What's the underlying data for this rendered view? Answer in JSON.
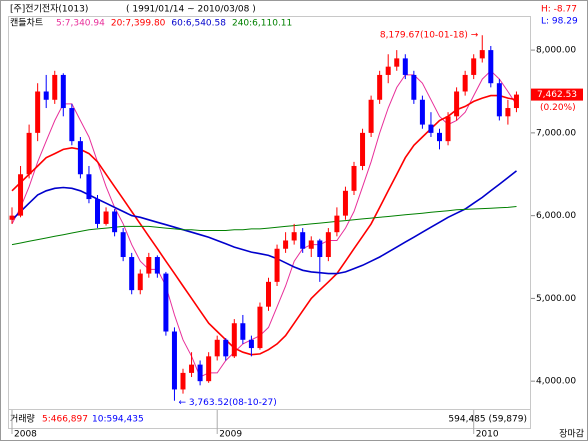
{
  "header": {
    "title": "[주]전기전자(1013)",
    "period": "( 1991/01/14 ~ 2010/03/08 )",
    "high": "H: -8.77",
    "low": "L: 98.29"
  },
  "chart_data": {
    "type": "candlestick",
    "label": "캔들차트",
    "up_color": "#ff0000",
    "down_color": "#0000ff",
    "candles": [
      [
        5950,
        6100,
        5900,
        6000
      ],
      [
        6000,
        6600,
        5980,
        6500
      ],
      [
        6500,
        7100,
        6450,
        7000
      ],
      [
        7000,
        7600,
        6900,
        7500
      ],
      [
        7500,
        7700,
        7300,
        7400
      ],
      [
        7400,
        7750,
        7350,
        7700
      ],
      [
        7700,
        7720,
        7200,
        7300
      ],
      [
        7300,
        7350,
        6850,
        6900
      ],
      [
        6900,
        6950,
        6450,
        6500
      ],
      [
        6500,
        6600,
        6150,
        6200
      ],
      [
        6200,
        6250,
        5850,
        5900
      ],
      [
        5900,
        6100,
        5880,
        6050
      ],
      [
        6050,
        6080,
        5750,
        5800
      ],
      [
        5800,
        5850,
        5450,
        5500
      ],
      [
        5500,
        5550,
        5050,
        5100
      ],
      [
        5100,
        5350,
        5050,
        5300
      ],
      [
        5300,
        5550,
        5250,
        5500
      ],
      [
        5500,
        5520,
        5250,
        5300
      ],
      [
        5300,
        5320,
        4550,
        4600
      ],
      [
        4600,
        4650,
        3763.52,
        3900
      ],
      [
        3900,
        4150,
        3850,
        4100
      ],
      [
        4100,
        4350,
        4050,
        4200
      ],
      [
        4200,
        4250,
        3950,
        4000
      ],
      [
        4000,
        4350,
        3980,
        4300
      ],
      [
        4300,
        4550,
        4250,
        4500
      ],
      [
        4500,
        4520,
        4250,
        4300
      ],
      [
        4300,
        4750,
        4280,
        4700
      ],
      [
        4700,
        4800,
        4450,
        4500
      ],
      [
        4500,
        4550,
        4300,
        4400
      ],
      [
        4400,
        4950,
        4380,
        4900
      ],
      [
        4900,
        5250,
        4850,
        5200
      ],
      [
        5200,
        5650,
        5150,
        5600
      ],
      [
        5600,
        5800,
        5550,
        5700
      ],
      [
        5700,
        5900,
        5650,
        5800
      ],
      [
        5800,
        5850,
        5550,
        5600
      ],
      [
        5600,
        5750,
        5500,
        5700
      ],
      [
        5700,
        5720,
        5200,
        5500
      ],
      [
        5500,
        5850,
        5450,
        5800
      ],
      [
        5800,
        6100,
        5750,
        6000
      ],
      [
        6000,
        6350,
        5950,
        6300
      ],
      [
        6300,
        6650,
        6250,
        6600
      ],
      [
        6600,
        7050,
        6550,
        7000
      ],
      [
        7000,
        7450,
        6950,
        7400
      ],
      [
        7400,
        7750,
        7350,
        7700
      ],
      [
        7700,
        7950,
        7600,
        7800
      ],
      [
        7800,
        8000,
        7750,
        7900
      ],
      [
        7900,
        7950,
        7650,
        7700
      ],
      [
        7700,
        7750,
        7350,
        7400
      ],
      [
        7400,
        7450,
        7050,
        7100
      ],
      [
        7100,
        7250,
        6950,
        7000
      ],
      [
        7000,
        7050,
        6800,
        6900
      ],
      [
        6900,
        7250,
        6850,
        7200
      ],
      [
        7200,
        7550,
        7150,
        7500
      ],
      [
        7500,
        7750,
        7450,
        7700
      ],
      [
        7700,
        7950,
        7650,
        7900
      ],
      [
        7900,
        8179.67,
        7850,
        8000
      ],
      [
        8000,
        8050,
        7550,
        7600
      ],
      [
        7600,
        7650,
        7150,
        7200
      ],
      [
        7200,
        7400,
        7100,
        7300
      ],
      [
        7300,
        7500,
        7250,
        7462.53
      ]
    ],
    "series": [
      {
        "name": "5:7,340.94",
        "color": "#e8309a",
        "values": [
          5900,
          6100,
          6350,
          6650,
          6900,
          7150,
          7350,
          7350,
          7150,
          6950,
          6650,
          6350,
          6100,
          5900,
          5650,
          5450,
          5350,
          5350,
          5150,
          4800,
          4500,
          4300,
          4050,
          4100,
          4100,
          4250,
          4350,
          4450,
          4500,
          4550,
          4650,
          4900,
          5150,
          5450,
          5600,
          5650,
          5650,
          5700,
          5700,
          5850,
          6050,
          6350,
          6650,
          7000,
          7300,
          7550,
          7700,
          7700,
          7600,
          7400,
          7200,
          7100,
          7150,
          7250,
          7450,
          7650,
          7750,
          7650,
          7500,
          7340.94
        ]
      },
      {
        "name": "20:7,399.80",
        "color": "#ff0000",
        "values": [
          6300,
          6400,
          6500,
          6600,
          6700,
          6750,
          6800,
          6820,
          6800,
          6750,
          6650,
          6500,
          6350,
          6200,
          6050,
          5900,
          5750,
          5600,
          5450,
          5300,
          5150,
          5000,
          4850,
          4700,
          4600,
          4500,
          4400,
          4350,
          4320,
          4330,
          4380,
          4450,
          4550,
          4700,
          4850,
          5000,
          5100,
          5200,
          5300,
          5450,
          5600,
          5750,
          5900,
          6100,
          6300,
          6500,
          6700,
          6850,
          6950,
          7050,
          7150,
          7200,
          7280,
          7320,
          7380,
          7420,
          7450,
          7450,
          7420,
          7399.8
        ]
      },
      {
        "name": "60:6,540.58",
        "color": "#0000cc",
        "values": [
          5950,
          6050,
          6150,
          6250,
          6300,
          6330,
          6340,
          6330,
          6300,
          6250,
          6200,
          6150,
          6100,
          6050,
          6000,
          5980,
          5950,
          5920,
          5890,
          5860,
          5830,
          5800,
          5770,
          5740,
          5700,
          5660,
          5620,
          5590,
          5560,
          5540,
          5520,
          5480,
          5430,
          5380,
          5340,
          5320,
          5310,
          5300,
          5300,
          5320,
          5360,
          5400,
          5450,
          5500,
          5560,
          5620,
          5680,
          5740,
          5800,
          5860,
          5920,
          5980,
          6030,
          6080,
          6150,
          6220,
          6300,
          6380,
          6460,
          6540.58
        ]
      },
      {
        "name": "240:6,110.11",
        "color": "#008000",
        "values": [
          5650,
          5670,
          5690,
          5710,
          5730,
          5750,
          5770,
          5790,
          5810,
          5830,
          5840,
          5850,
          5860,
          5870,
          5870,
          5870,
          5870,
          5860,
          5850,
          5840,
          5830,
          5830,
          5820,
          5820,
          5820,
          5820,
          5830,
          5830,
          5840,
          5840,
          5850,
          5860,
          5870,
          5880,
          5890,
          5900,
          5910,
          5920,
          5930,
          5940,
          5950,
          5960,
          5970,
          5980,
          5990,
          6000,
          6010,
          6020,
          6030,
          6040,
          6050,
          6060,
          6070,
          6075,
          6080,
          6085,
          6090,
          6095,
          6100,
          6110.11
        ]
      }
    ],
    "ylim": [
      3700,
      8400
    ],
    "yticks": [
      {
        "value": 4000,
        "label": "4,000.00"
      },
      {
        "value": 5000,
        "label": "5,000.00"
      },
      {
        "value": 6000,
        "label": "6,000.00"
      },
      {
        "value": 7000,
        "label": "7,000.00"
      },
      {
        "value": 8000,
        "label": "8,000.00"
      }
    ],
    "xticks": [
      {
        "value": 0,
        "label": "2008"
      },
      {
        "value": 24,
        "label": "2009"
      },
      {
        "value": 54,
        "label": "2010"
      }
    ],
    "current": {
      "value": 7462.53,
      "label": "7,462.53",
      "change": "(0.20%)"
    },
    "annotations": [
      {
        "text": "8,179.67(10-01-18) →",
        "index": 55,
        "value": 8179.67,
        "color": "#ff0000"
      },
      {
        "text": "← 3,763.52(08-10-27)",
        "index": 19,
        "value": 3763.52,
        "color": "#0000ff"
      }
    ]
  },
  "volume": {
    "label": "거래량",
    "ma5": "5:466,897",
    "ma10": "10:594,435",
    "last": "594,485 (59,879)"
  },
  "status": "장마감"
}
